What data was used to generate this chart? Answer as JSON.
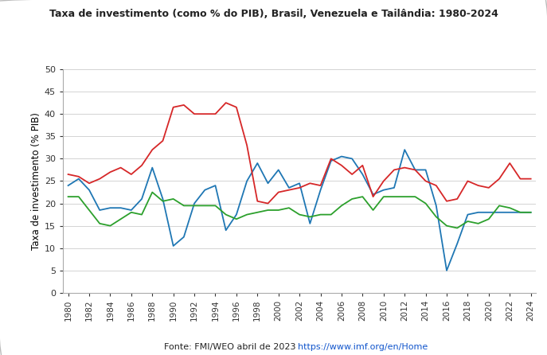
{
  "title": "Taxa de investimento (como % do PIB), Brasil, Venezuela e Tailândia: 1980-2024",
  "ylabel": "Taxa de investimento (% PIB)",
  "source_text": "Fonte: FMI/WEO abril de 2023 ",
  "source_link": "https://www.imf.org/en/Home",
  "years": [
    1980,
    1981,
    1982,
    1983,
    1984,
    1985,
    1986,
    1987,
    1988,
    1989,
    1990,
    1991,
    1992,
    1993,
    1994,
    1995,
    1996,
    1997,
    1998,
    1999,
    2000,
    2001,
    2002,
    2003,
    2004,
    2005,
    2006,
    2007,
    2008,
    2009,
    2010,
    2011,
    2012,
    2013,
    2014,
    2015,
    2016,
    2017,
    2018,
    2019,
    2020,
    2021,
    2022,
    2023,
    2024
  ],
  "venezuela": [
    24.0,
    25.5,
    23.0,
    18.5,
    19.0,
    19.0,
    18.5,
    21.0,
    28.0,
    21.0,
    10.5,
    12.5,
    20.0,
    23.0,
    24.0,
    14.0,
    17.5,
    25.0,
    29.0,
    24.5,
    27.5,
    23.5,
    24.5,
    15.5,
    23.0,
    29.5,
    30.5,
    30.0,
    26.5,
    22.0,
    23.0,
    23.5,
    32.0,
    27.5,
    27.5,
    19.5,
    5.0,
    11.0,
    17.5,
    18.0,
    18.0,
    18.0,
    18.0,
    18.0,
    18.0
  ],
  "brasil": [
    21.5,
    21.5,
    18.5,
    15.5,
    15.0,
    16.5,
    18.0,
    17.5,
    22.5,
    20.5,
    21.0,
    19.5,
    19.5,
    19.5,
    19.5,
    17.5,
    16.5,
    17.5,
    18.0,
    18.5,
    18.5,
    19.0,
    17.5,
    17.0,
    17.5,
    17.5,
    19.5,
    21.0,
    21.5,
    18.5,
    21.5,
    21.5,
    21.5,
    21.5,
    20.0,
    17.0,
    15.0,
    14.5,
    16.0,
    15.5,
    16.5,
    19.5,
    19.0,
    18.0,
    18.0
  ],
  "tailandia": [
    26.5,
    26.0,
    24.5,
    25.5,
    27.0,
    28.0,
    26.5,
    28.5,
    32.0,
    34.0,
    41.5,
    42.0,
    40.0,
    40.0,
    40.0,
    42.5,
    41.5,
    33.0,
    20.5,
    20.0,
    22.5,
    23.0,
    23.5,
    24.5,
    24.0,
    30.0,
    28.5,
    26.5,
    28.5,
    21.5,
    25.0,
    27.5,
    28.0,
    27.5,
    25.0,
    24.0,
    20.5,
    21.0,
    25.0,
    24.0,
    23.5,
    25.5,
    29.0,
    25.5,
    25.5
  ],
  "venezuela_color": "#1F77B4",
  "brasil_color": "#2CA02C",
  "tailandia_color": "#D62728",
  "ylim": [
    0,
    50
  ],
  "yticks": [
    0,
    5,
    10,
    15,
    20,
    25,
    30,
    35,
    40,
    45,
    50
  ],
  "bg_color": "#FFFFFF",
  "grid_color": "#CCCCCC"
}
